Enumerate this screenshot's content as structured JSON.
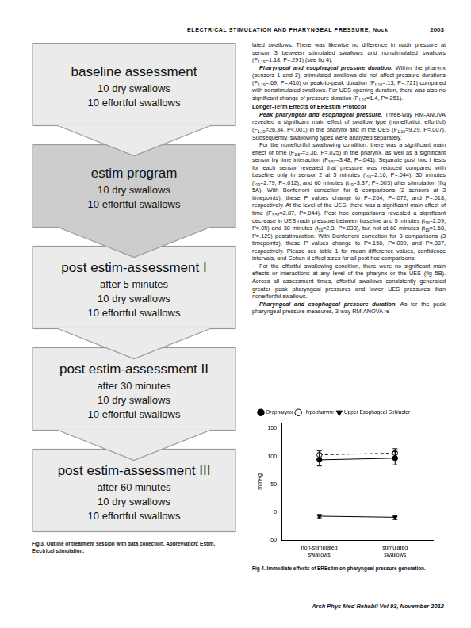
{
  "header": {
    "title": "ELECTRICAL STIMULATION AND PHARYNGEAL PRESSURE, Nock",
    "page": "2003"
  },
  "figure3": {
    "nodes": [
      {
        "title": "baseline assessment",
        "lines": [
          "10 dry swallows",
          "10 effortful swallows"
        ],
        "color": "#ebebeb"
      },
      {
        "title": "estim program",
        "lines": [
          "10 dry swallows",
          "10 effortful swallows"
        ],
        "color": "#cdcdcd"
      },
      {
        "title": "post estim-assessment I",
        "lines": [
          "after 5 minutes",
          "10 dry swallows",
          "10 effortful swallows"
        ],
        "color": "#ebebeb"
      },
      {
        "title": "post estim-assessment II",
        "lines": [
          "after 30 minutes",
          "10 dry swallows",
          "10 effortful swallows"
        ],
        "color": "#ebebeb"
      },
      {
        "title": "post estim-assessment III",
        "lines": [
          "after 60 minutes",
          "10 dry swallows",
          "10 effortful swallows"
        ],
        "color": "#ebebeb"
      }
    ],
    "caption": {
      "label": "Fig 3.",
      "text": "Outline of treatment session with data collection. Abbreviation: Estim, Electrical stimulation."
    }
  },
  "text": [
    [
      "lated swallows. There was likewise no difference in nadir pressure at sensor 3 between stimulated swallows and nonstimulated swallows (F",
      {
        "sub": "1,19"
      },
      "=1.18, P=.291) (see fig 4)."
    ],
    [
      {
        "bi": "Pharyngeal and esophageal pressure duration."
      },
      " Within the pharynx (sensors 1 and 2), stimulated swallows did not affect pressure durations (F",
      {
        "sub": "1,19"
      },
      "=.69, P=.416) or peak-to-peak duration (F",
      {
        "sub": "1,19"
      },
      "=.13, P=.721) compared with nonstimulated swallows. For UES opening duration, there was also no significant change of pressure duration (F",
      {
        "sub": "1,19"
      },
      "=1.4, P=.251)."
    ],
    {
      "heading": "Longer-Term Effects of EREstim Protocol"
    },
    [
      {
        "bi": "Peak pharyngeal and esophageal pressure."
      },
      " Three-way RM-ANOVA revealed a significant main effect of swallow type (noneffortful, effortful) (F",
      {
        "sub": "1,19"
      },
      "=26.34, P<.001) in the pharynx and in the UES (F",
      {
        "sub": "1,19"
      },
      "=9.29, P=.007). Subsequently, swallowing types were analyzed separately."
    ],
    [
      "For the noneffortful swallowing condition, there was a significant main effect of time (F",
      {
        "sub": "3,57"
      },
      "=3.36, P=.025) in the pharynx, as well as a significant sensor by time interaction (F",
      {
        "sub": "3,57"
      },
      "=3.48, P=.041). Separate post hoc t tests for each sensor revealed that pressure was reduced compared with baseline only in sensor 2 at 5 minutes (t",
      {
        "sub": "19"
      },
      "=2.16, P=.044), 30 minutes (t",
      {
        "sub": "19"
      },
      "=2.79, P=.012), and 60 minutes (t",
      {
        "sub": "19"
      },
      "=3.37, P=.003) after stimulation (fig 5A). With Bonferroni correction for 6 comparisons (2 sensors at 3 timepoints), these P values change to P=.264, P=.072, and P=.018, respectively. At the level of the UES, there was a significant main effect of time (F",
      {
        "sub": "3,57"
      },
      "=2.87, P=.044). Post hoc comparisons revealed a significant decrease in UES nadir pressure between baseline and 5 minutes (t",
      {
        "sub": "19"
      },
      "=2.09, P=.05) and 30 minutes (t",
      {
        "sub": "19"
      },
      "=2.3, P=.033), but not at 60 minutes (t",
      {
        "sub": "19"
      },
      "=1.58, P=.129) poststimulation. With Bonferroni correction for 3 comparisons (3 timepoints), these P values change to P=.150, P=.099, and P=.387, respectively. Please see table 1 for mean difference values, confidence intervals, and Cohen d effect sizes for all post hoc comparisons."
    ],
    [
      "For the effortful swallowing condition, there were no significant main effects or interactions at any level of the pharynx or the UES (fig 5B). Across all assessment times, effortful swallows consistently generated greater peak pharyngeal pressures and lower UES pressures than noneffortful swallows."
    ],
    [
      {
        "bi": "Pharyngeal and esophageal pressure duration."
      },
      " As for the peak pharyngeal pressure measures, 3-way RM-ANOVA re-"
    ]
  ],
  "chart_data": {
    "type": "line",
    "y_label": "mmHg",
    "categories": [
      "non-stimulated swallows",
      "stimulated swallows"
    ],
    "series": [
      {
        "name": "Oropharynx",
        "color": "#000000",
        "marker": "circle",
        "line_style": "solid",
        "values": [
          94,
          97
        ],
        "errors": [
          11,
          12
        ]
      },
      {
        "name": "Hypopharynx",
        "color": "#000000",
        "marker": "circle-open",
        "line_style": "dashed",
        "values": [
          103,
          106
        ],
        "errors": [
          7,
          8
        ]
      },
      {
        "name": "Upper Esophageal Sphincter",
        "color": "#000000",
        "marker": "triangle-down",
        "line_style": "solid",
        "values": [
          -7,
          -9
        ],
        "errors": [
          3,
          4
        ]
      }
    ],
    "ylim": [
      -50,
      160
    ],
    "yticks": [
      -50,
      0,
      50,
      100,
      150
    ],
    "grid": false,
    "legend": "upper left"
  },
  "figure4": {
    "caption": {
      "label": "Fig 4.",
      "text": "Immediate effects of EREstim on pharyngeal pressure generation."
    }
  },
  "footer": "Arch Phys Med Rehabil Vol 93, November 2012"
}
